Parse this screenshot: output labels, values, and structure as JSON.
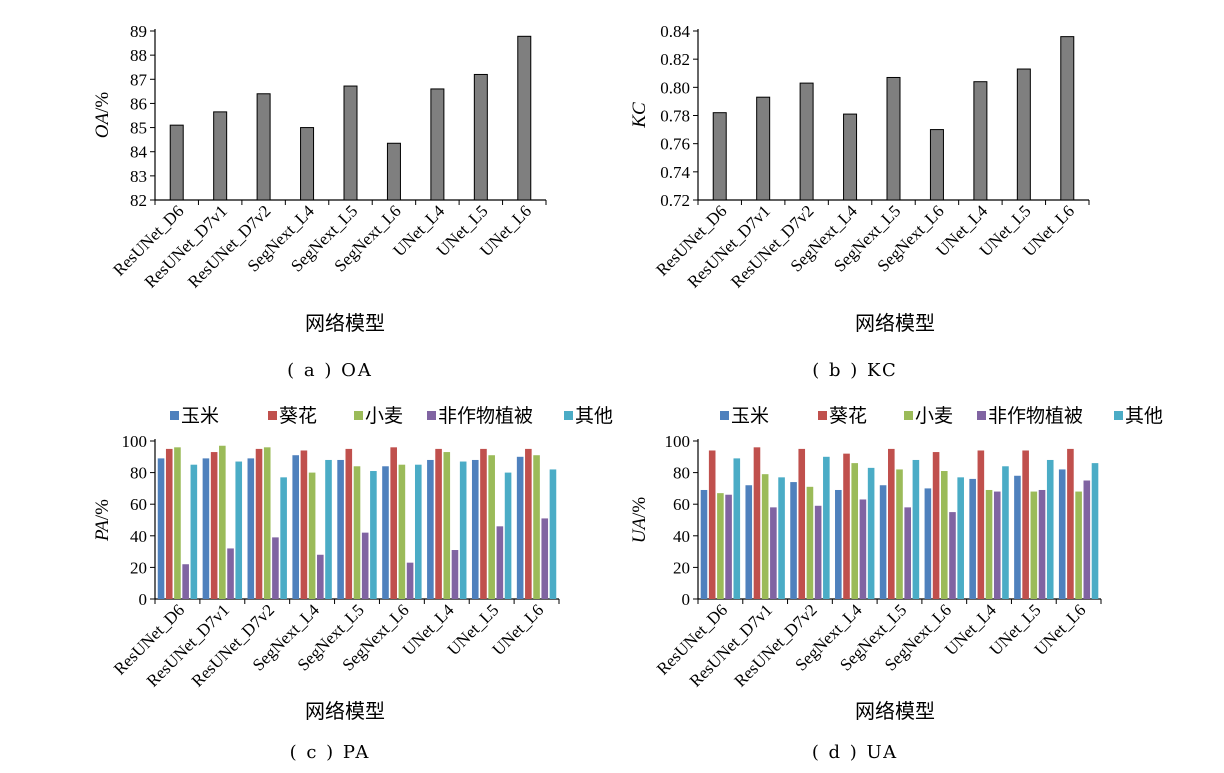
{
  "chart_data": [
    {
      "type": "bar",
      "caption": "( a )  OA",
      "categories": [
        "ResUNet_D6",
        "ResUNet_D7v1",
        "ResUNet_D7v2",
        "SegNext_L4",
        "SegNext_L5",
        "SegNext_L6",
        "UNet_L4",
        "UNet_L5",
        "UNet_L6"
      ],
      "values": [
        85.1,
        85.65,
        86.4,
        85.0,
        86.72,
        84.35,
        86.6,
        87.2,
        88.78
      ],
      "ylabel_italic": "OA",
      "ylabel_unit": "/%",
      "xlabel": "网络模型",
      "ylim": [
        82,
        89
      ],
      "yticks": [
        "82",
        "83",
        "84",
        "85",
        "86",
        "87",
        "88",
        "89"
      ],
      "bar_color": "#7f7f7f"
    },
    {
      "type": "bar",
      "caption": "( b )  KC",
      "categories": [
        "ResUNet_D6",
        "ResUNet_D7v1",
        "ResUNet_D7v2",
        "SegNext_L4",
        "SegNext_L5",
        "SegNext_L6",
        "UNet_L4",
        "UNet_L5",
        "UNet_L6"
      ],
      "values": [
        0.782,
        0.793,
        0.803,
        0.781,
        0.807,
        0.77,
        0.804,
        0.813,
        0.836
      ],
      "ylabel_italic": "KC",
      "ylabel_unit": "",
      "xlabel": "网络模型",
      "ylim": [
        0.72,
        0.84
      ],
      "yticks": [
        "0.72",
        "0.74",
        "0.76",
        "0.78",
        "0.80",
        "0.82",
        "0.84"
      ],
      "bar_color": "#7f7f7f"
    },
    {
      "type": "bar",
      "caption": "( c )  PA",
      "categories": [
        "ResUNet_D6",
        "ResUNet_D7v1",
        "ResUNet_D7v2",
        "SegNext_L4",
        "SegNext_L5",
        "SegNext_L6",
        "UNet_L4",
        "UNet_L5",
        "UNet_L6"
      ],
      "legend": "top",
      "series": [
        {
          "name": "玉米",
          "color": "#4f81bd",
          "values": [
            89,
            89,
            89,
            91,
            88,
            84,
            88,
            88,
            90
          ]
        },
        {
          "name": "葵花",
          "color": "#c0504d",
          "values": [
            95,
            93,
            95,
            94,
            95,
            96,
            95,
            95,
            95
          ]
        },
        {
          "name": "小麦",
          "color": "#9bbb59",
          "values": [
            96,
            97,
            96,
            80,
            84,
            85,
            93,
            91,
            91
          ]
        },
        {
          "name": "非作物植被",
          "color": "#8064a2",
          "values": [
            22,
            32,
            39,
            28,
            42,
            23,
            31,
            46,
            51
          ]
        },
        {
          "name": "其他",
          "color": "#4bacc6",
          "values": [
            85,
            87,
            77,
            88,
            81,
            85,
            87,
            80,
            82
          ]
        }
      ],
      "ylabel_italic": "PA",
      "ylabel_unit": "/%",
      "xlabel": "网络模型",
      "ylim": [
        0,
        100
      ],
      "yticks": [
        "0",
        "20",
        "40",
        "60",
        "80",
        "100"
      ]
    },
    {
      "type": "bar",
      "caption": "( d )  UA",
      "categories": [
        "ResUNet_D6",
        "ResUNet_D7v1",
        "ResUNet_D7v2",
        "SegNext_L4",
        "SegNext_L5",
        "SegNext_L6",
        "UNet_L4",
        "UNet_L5",
        "UNet_L6"
      ],
      "legend": "top",
      "series": [
        {
          "name": "玉米",
          "color": "#4f81bd",
          "values": [
            69,
            72,
            74,
            69,
            72,
            70,
            76,
            78,
            82
          ]
        },
        {
          "name": "葵花",
          "color": "#c0504d",
          "values": [
            94,
            96,
            95,
            92,
            95,
            93,
            94,
            94,
            95
          ]
        },
        {
          "name": "小麦",
          "color": "#9bbb59",
          "values": [
            67,
            79,
            71,
            86,
            82,
            81,
            69,
            68,
            68
          ]
        },
        {
          "name": "非作物植被",
          "color": "#8064a2",
          "values": [
            66,
            58,
            59,
            63,
            58,
            55,
            68,
            69,
            75
          ]
        },
        {
          "name": "其他",
          "color": "#4bacc6",
          "values": [
            89,
            77,
            90,
            83,
            88,
            77,
            84,
            88,
            86
          ]
        }
      ],
      "ylabel_italic": "UA",
      "ylabel_unit": "/%",
      "xlabel": "网络模型",
      "ylim": [
        0,
        100
      ],
      "yticks": [
        "0",
        "20",
        "40",
        "60",
        "80",
        "100"
      ]
    }
  ]
}
